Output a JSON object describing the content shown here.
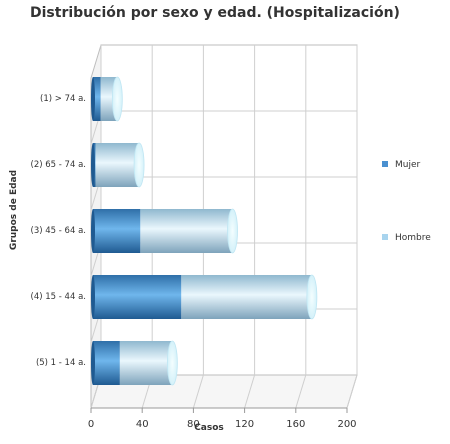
{
  "chart_data": {
    "type": "bar",
    "orientation": "horizontal",
    "stacked": true,
    "style": "3d-cylinder",
    "title": "Distribución por sexo y edad. (Hospitalización)",
    "xlabel": "Casos",
    "ylabel": "Grupos de Edad",
    "xlim": [
      0,
      200
    ],
    "xticks": [
      "0",
      "40",
      "80",
      "120",
      "160",
      "200"
    ],
    "categories": [
      "(1) > 74 a.",
      "(2) 65 - 74 a.",
      "(3) 45 - 64 a.",
      "(4) 15 - 44 a.",
      "(5) 1 - 14 a."
    ],
    "series": [
      {
        "name": "Mujer",
        "color": "#4a90d0",
        "values": [
          6,
          2,
          37,
          69,
          21
        ]
      },
      {
        "name": "Hombre",
        "color": "#a8d4ee",
        "values": [
          13,
          34,
          72,
          102,
          41
        ]
      }
    ],
    "grid": true,
    "legend_position": "right"
  }
}
